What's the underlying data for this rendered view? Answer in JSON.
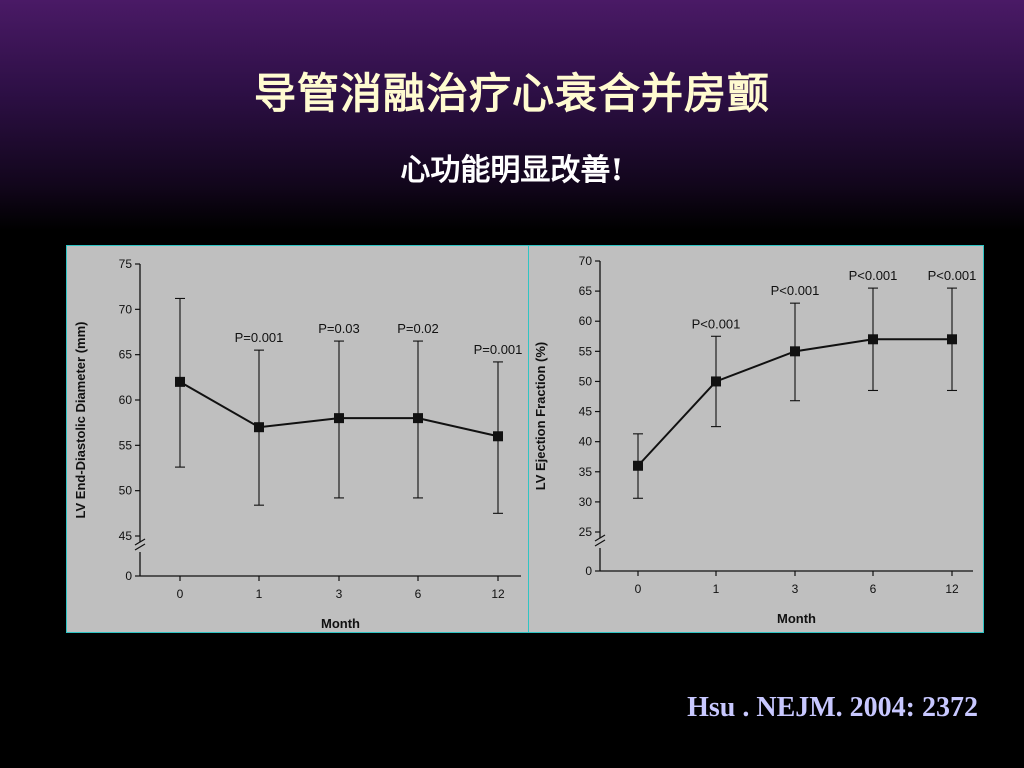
{
  "slide": {
    "title": "导管消融治疗心衰合并房颤",
    "subtitle": "心功能明显改善!",
    "citation": "Hsu . NEJM. 2004: 2372"
  },
  "colors": {
    "panel_border": "#2fc4c4",
    "panel_bg": "#bfbfbf",
    "title": "#fffbd0",
    "citation": "#c8c8ff"
  },
  "chart_data": [
    {
      "type": "line",
      "xlabel": "Month",
      "ylabel": "LV End-Diastolic Diameter (mm)",
      "categories": [
        "0",
        "1",
        "3",
        "6",
        "12"
      ],
      "yticks": [
        0,
        45,
        50,
        55,
        60,
        65,
        70,
        75
      ],
      "ylim": [
        45,
        75
      ],
      "axis_break": true,
      "grid": false,
      "series": [
        {
          "values": [
            62,
            57,
            58,
            58,
            56
          ],
          "error_upper": [
            71.2,
            65.5,
            66.5,
            66.5,
            64.2
          ],
          "error_lower": [
            52.6,
            48.4,
            49.2,
            49.2,
            47.5
          ]
        }
      ],
      "annotations": [
        "",
        "P=0.001",
        "P=0.03",
        "P=0.02",
        "P=0.001"
      ]
    },
    {
      "type": "line",
      "xlabel": "Month",
      "ylabel": "LV Ejection Fraction (%)",
      "categories": [
        "0",
        "1",
        "3",
        "6",
        "12"
      ],
      "yticks": [
        0,
        25,
        30,
        35,
        40,
        45,
        50,
        55,
        60,
        65,
        70
      ],
      "ylim": [
        25,
        70
      ],
      "axis_break": true,
      "grid": false,
      "series": [
        {
          "values": [
            36,
            50,
            55,
            57,
            57
          ],
          "error_upper": [
            41.3,
            57.5,
            63.0,
            65.5,
            65.5
          ],
          "error_lower": [
            30.6,
            42.5,
            46.8,
            48.5,
            48.5
          ]
        }
      ],
      "annotations": [
        "",
        "P<0.001",
        "P<0.001",
        "P<0.001",
        "P<0.001"
      ]
    }
  ]
}
